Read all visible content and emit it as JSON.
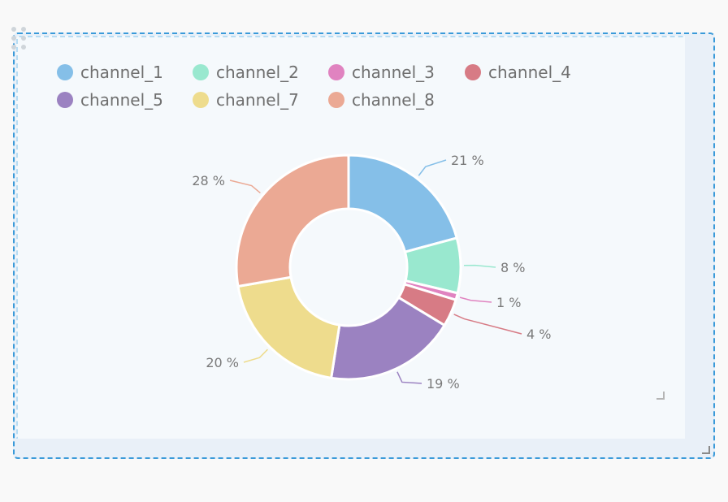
{
  "chart_data": {
    "type": "pie",
    "variant": "donut",
    "title": "",
    "legend_position": "top-left",
    "unit": "%",
    "slices": [
      {
        "name": "channel_1",
        "value": 21,
        "label": "21 %",
        "color": "#85bfe8"
      },
      {
        "name": "channel_2",
        "value": 8,
        "label": "8 %",
        "color": "#99e8cf"
      },
      {
        "name": "channel_3",
        "value": 1,
        "label": "1 %",
        "color": "#e083c0"
      },
      {
        "name": "channel_4",
        "value": 4,
        "label": "4 %",
        "color": "#d77b85"
      },
      {
        "name": "channel_5",
        "value": 19,
        "label": "19 %",
        "color": "#9b82c1"
      },
      {
        "name": "channel_7",
        "value": 20,
        "label": "20 %",
        "color": "#eedc8d"
      },
      {
        "name": "channel_8",
        "value": 28,
        "label": "28 %",
        "color": "#eba994"
      }
    ]
  }
}
